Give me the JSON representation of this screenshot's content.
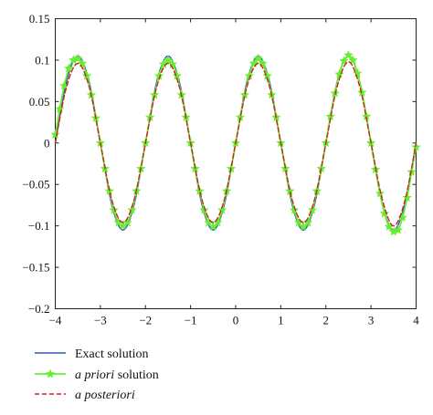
{
  "chart_data": {
    "type": "line",
    "title": "",
    "xlabel": "",
    "ylabel": "",
    "xlim": [
      -4,
      4
    ],
    "ylim": [
      -0.2,
      0.15
    ],
    "xticks": [
      -4,
      -3,
      -2,
      -1,
      0,
      1,
      2,
      3,
      4
    ],
    "xtick_labels": [
      "−4",
      "−3",
      "−2",
      "−1",
      "0",
      "1",
      "2",
      "3",
      "4"
    ],
    "yticks": [
      0.15,
      0.1,
      0.05,
      0,
      -0.05,
      -0.1,
      -0.15,
      -0.2
    ],
    "ytick_labels": [
      "0.15",
      "0.1",
      "0.05",
      "0",
      "−0.05",
      "−0.1",
      "−0.15",
      "−0.2"
    ],
    "grid": false,
    "legend_position": "below",
    "series": [
      {
        "name": "Exact solution",
        "name_parts": [
          {
            "text": "Exact solution",
            "italic": false
          }
        ],
        "color": "#3355bb",
        "style": "solid",
        "marker": "none",
        "x": [
          -4.0,
          -3.75,
          -3.5,
          -3.25,
          -3.0,
          -2.75,
          -2.5,
          -2.25,
          -2.0,
          -1.75,
          -1.5,
          -1.25,
          -1.0,
          -0.75,
          -0.5,
          -0.25,
          0.0,
          0.25,
          0.5,
          0.75,
          1.0,
          1.25,
          1.5,
          1.75,
          2.0,
          2.25,
          2.5,
          2.75,
          3.0,
          3.25,
          3.5,
          3.75,
          4.0
        ],
        "y": [
          0.0,
          0.074,
          0.105,
          0.074,
          0.0,
          -0.074,
          -0.105,
          -0.074,
          0.0,
          0.074,
          0.105,
          0.074,
          0.0,
          -0.074,
          -0.105,
          -0.074,
          0.0,
          0.074,
          0.105,
          0.074,
          0.0,
          -0.074,
          -0.105,
          -0.074,
          0.0,
          0.074,
          0.105,
          0.074,
          0.0,
          -0.074,
          -0.105,
          -0.074,
          0.0
        ]
      },
      {
        "name": "a priori solution",
        "name_parts": [
          {
            "text": "a priori",
            "italic": true
          },
          {
            "text": " solution",
            "italic": false
          }
        ],
        "color": "#66ee33",
        "style": "solid",
        "marker": "star",
        "x": [
          -4.0,
          -3.9,
          -3.8,
          -3.7,
          -3.6,
          -3.5,
          -3.4,
          -3.3,
          -3.2,
          -3.1,
          -3.0,
          -2.9,
          -2.8,
          -2.7,
          -2.6,
          -2.5,
          -2.4,
          -2.3,
          -2.2,
          -2.1,
          -2.0,
          -1.9,
          -1.8,
          -1.7,
          -1.6,
          -1.5,
          -1.4,
          -1.3,
          -1.2,
          -1.1,
          -1.0,
          -0.9,
          -0.8,
          -0.7,
          -0.6,
          -0.5,
          -0.4,
          -0.3,
          -0.2,
          -0.1,
          0.0,
          0.1,
          0.2,
          0.3,
          0.4,
          0.5,
          0.6,
          0.7,
          0.8,
          0.9,
          1.0,
          1.1,
          1.2,
          1.3,
          1.4,
          1.5,
          1.6,
          1.7,
          1.8,
          1.9,
          2.0,
          2.1,
          2.2,
          2.3,
          2.4,
          2.5,
          2.6,
          2.7,
          2.8,
          2.9,
          3.0,
          3.1,
          3.2,
          3.3,
          3.4,
          3.5,
          3.6,
          3.7,
          3.8,
          3.9,
          4.0
        ],
        "y": [
          0.01,
          0.041,
          0.069,
          0.09,
          0.1,
          0.102,
          0.096,
          0.081,
          0.058,
          0.03,
          0.0,
          -0.031,
          -0.058,
          -0.081,
          -0.096,
          -0.1,
          -0.096,
          -0.081,
          -0.058,
          -0.031,
          0.0,
          0.031,
          0.058,
          0.081,
          0.095,
          0.1,
          0.095,
          0.081,
          0.058,
          0.031,
          0.0,
          -0.031,
          -0.058,
          -0.081,
          -0.096,
          -0.101,
          -0.096,
          -0.081,
          -0.058,
          -0.031,
          0.0,
          0.031,
          0.058,
          0.081,
          0.096,
          0.102,
          0.096,
          0.081,
          0.058,
          0.031,
          0.0,
          -0.031,
          -0.058,
          -0.081,
          -0.096,
          -0.101,
          -0.096,
          -0.081,
          -0.058,
          -0.031,
          0.0,
          0.032,
          0.06,
          0.083,
          0.099,
          0.106,
          0.1,
          0.084,
          0.061,
          0.032,
          0.0,
          -0.032,
          -0.061,
          -0.085,
          -0.101,
          -0.107,
          -0.105,
          -0.09,
          -0.066,
          -0.035,
          -0.005
        ]
      },
      {
        "name": "a posteriori",
        "name_parts": [
          {
            "text": "a posteriori",
            "italic": true
          }
        ],
        "color": "#cc2222",
        "style": "dashed",
        "marker": "none",
        "x": [
          -4.0,
          -3.75,
          -3.5,
          -3.25,
          -3.0,
          -2.75,
          -2.5,
          -2.25,
          -2.0,
          -1.75,
          -1.5,
          -1.25,
          -1.0,
          -0.75,
          -0.5,
          -0.25,
          0.0,
          0.25,
          0.5,
          0.75,
          1.0,
          1.25,
          1.5,
          1.75,
          2.0,
          2.25,
          2.5,
          2.75,
          3.0,
          3.25,
          3.5,
          3.75,
          4.0
        ],
        "y": [
          0.0,
          0.068,
          0.096,
          0.068,
          0.0,
          -0.068,
          -0.096,
          -0.068,
          0.0,
          0.068,
          0.096,
          0.068,
          0.0,
          -0.068,
          -0.096,
          -0.068,
          0.0,
          0.068,
          0.096,
          0.068,
          0.0,
          -0.068,
          -0.096,
          -0.068,
          0.0,
          0.068,
          0.098,
          0.068,
          0.0,
          -0.068,
          -0.1,
          -0.07,
          0.0
        ]
      }
    ]
  }
}
